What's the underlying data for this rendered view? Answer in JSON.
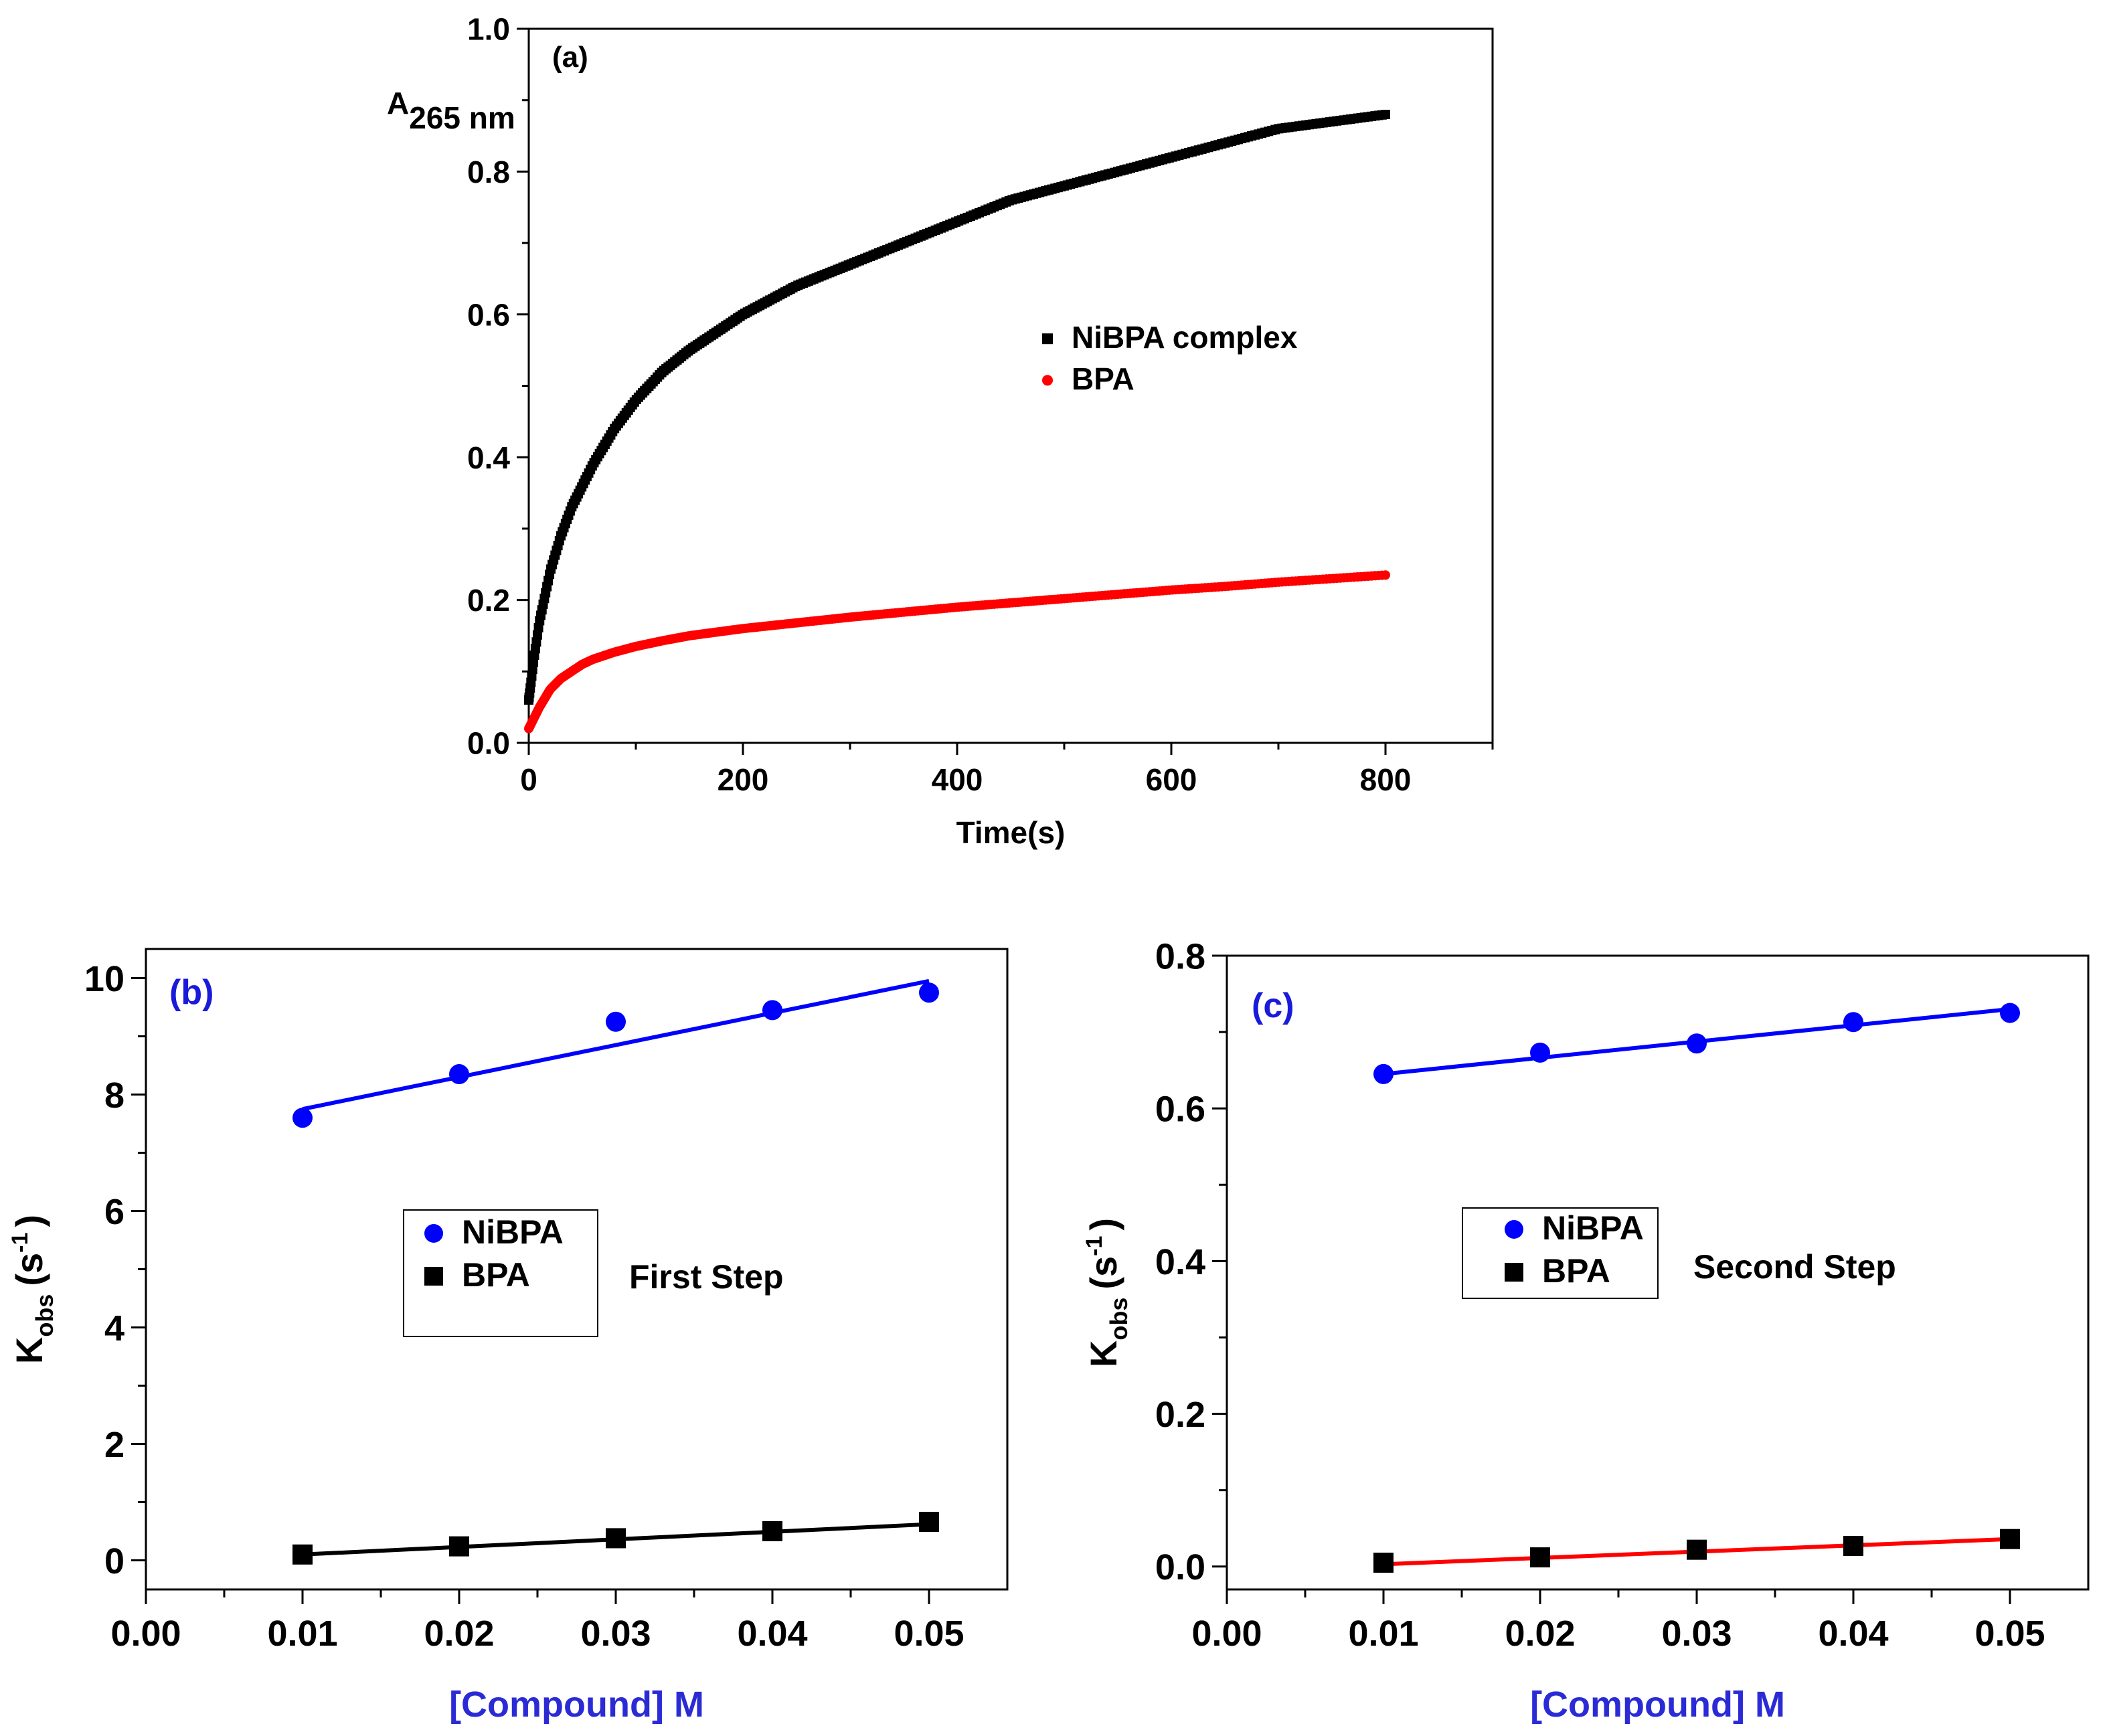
{
  "chart_data": [
    {
      "id": "a",
      "type": "scatter",
      "panel_label": "(a)",
      "xlabel": "Time(s)",
      "ylabel": "A",
      "ylabel_sub": "265 nm",
      "xlim": [
        0,
        900
      ],
      "ylim": [
        0,
        1.0
      ],
      "xticks": [
        0,
        200,
        400,
        600,
        800
      ],
      "xtick_labels": [
        "0",
        "200",
        "400",
        "600",
        "800"
      ],
      "yticks": [
        0.0,
        0.2,
        0.4,
        0.6,
        0.8,
        1.0
      ],
      "ytick_labels": [
        "0.0",
        "0.2",
        "0.4",
        "0.6",
        "0.8",
        "1.0"
      ],
      "legend": [
        "NiBPA complex",
        "BPA"
      ],
      "series": [
        {
          "name": "NiBPA complex",
          "color": "#000000",
          "marker": "square",
          "x": [
            0,
            5,
            10,
            20,
            30,
            40,
            50,
            60,
            80,
            100,
            125,
            150,
            200,
            250,
            300,
            350,
            400,
            450,
            500,
            550,
            600,
            650,
            700,
            750,
            800
          ],
          "y": [
            0.06,
            0.12,
            0.17,
            0.24,
            0.29,
            0.33,
            0.36,
            0.39,
            0.44,
            0.48,
            0.52,
            0.55,
            0.6,
            0.64,
            0.67,
            0.7,
            0.73,
            0.76,
            0.78,
            0.8,
            0.82,
            0.84,
            0.86,
            0.87,
            0.88
          ]
        },
        {
          "name": "BPA",
          "color": "#ff0000",
          "marker": "circle",
          "x": [
            0,
            5,
            10,
            20,
            30,
            40,
            50,
            60,
            80,
            100,
            125,
            150,
            200,
            250,
            300,
            350,
            400,
            450,
            500,
            550,
            600,
            650,
            700,
            750,
            800
          ],
          "y": [
            0.02,
            0.035,
            0.05,
            0.075,
            0.09,
            0.1,
            0.11,
            0.117,
            0.127,
            0.135,
            0.143,
            0.15,
            0.16,
            0.168,
            0.176,
            0.183,
            0.19,
            0.196,
            0.202,
            0.208,
            0.214,
            0.219,
            0.225,
            0.23,
            0.235
          ]
        }
      ]
    },
    {
      "id": "b",
      "type": "scatter",
      "panel_label": "(b)",
      "xlabel": "[Compound] M",
      "ylabel": "K",
      "ylabel_sub": "obs",
      "ylabel_unit": "(s",
      "ylabel_sup": "-1",
      "ylabel_close": ")",
      "xlim": [
        0,
        0.055
      ],
      "ylim": [
        -0.5,
        10.5
      ],
      "xticks": [
        0.0,
        0.01,
        0.02,
        0.03,
        0.04,
        0.05
      ],
      "xtick_labels": [
        "0.00",
        "0.01",
        "0.02",
        "0.03",
        "0.04",
        "0.05"
      ],
      "yticks": [
        0,
        2,
        4,
        6,
        8,
        10
      ],
      "ytick_labels": [
        "0",
        "2",
        "4",
        "6",
        "8",
        "10"
      ],
      "legend": [
        "NiBPA",
        "BPA"
      ],
      "annotation": "First Step",
      "series": [
        {
          "name": "NiBPA",
          "color": "#0000ff",
          "marker": "circle",
          "x": [
            0.01,
            0.02,
            0.03,
            0.04,
            0.05
          ],
          "y": [
            7.6,
            8.35,
            9.25,
            9.45,
            9.75
          ],
          "fit": [
            7.75,
            9.95
          ]
        },
        {
          "name": "BPA",
          "color": "#000000",
          "fit_color": "#000000",
          "marker": "square",
          "x": [
            0.01,
            0.02,
            0.03,
            0.04,
            0.05
          ],
          "y": [
            0.1,
            0.24,
            0.38,
            0.5,
            0.66
          ],
          "fit": [
            0.1,
            0.62
          ]
        }
      ]
    },
    {
      "id": "c",
      "type": "scatter",
      "panel_label": "(c)",
      "xlabel": "[Compound] M",
      "ylabel": "K",
      "ylabel_sub": "obs",
      "ylabel_unit": "(s",
      "ylabel_sup": "-1",
      "ylabel_close": ")",
      "xlim": [
        0,
        0.055
      ],
      "ylim": [
        -0.03,
        0.8
      ],
      "xticks": [
        0.0,
        0.01,
        0.02,
        0.03,
        0.04,
        0.05
      ],
      "xtick_labels": [
        "0.00",
        "0.01",
        "0.02",
        "0.03",
        "0.04",
        "0.05"
      ],
      "yticks": [
        0.0,
        0.2,
        0.4,
        0.6,
        0.8
      ],
      "ytick_labels": [
        "0.0",
        "0.2",
        "0.4",
        "0.6",
        "0.8"
      ],
      "legend": [
        "NiBPA",
        "BPA"
      ],
      "annotation": "Second Step",
      "series": [
        {
          "name": "NiBPA",
          "color": "#0000ff",
          "marker": "circle",
          "x": [
            0.01,
            0.02,
            0.03,
            0.04,
            0.05
          ],
          "y": [
            0.645,
            0.673,
            0.685,
            0.713,
            0.725
          ],
          "fit": [
            0.645,
            0.73
          ]
        },
        {
          "name": "BPA",
          "color": "#000000",
          "fit_color": "#ff0000",
          "marker": "square",
          "x": [
            0.01,
            0.02,
            0.03,
            0.04,
            0.05
          ],
          "y": [
            0.005,
            0.012,
            0.022,
            0.027,
            0.036
          ],
          "fit": [
            0.003,
            0.036
          ]
        }
      ]
    }
  ]
}
